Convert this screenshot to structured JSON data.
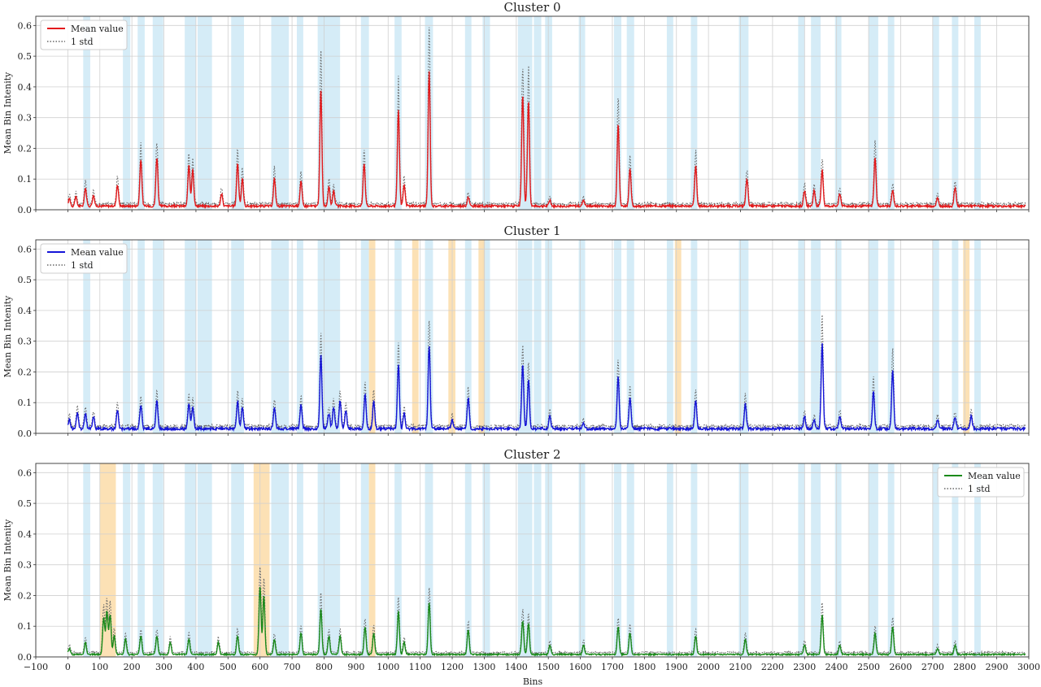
{
  "chart_data": {
    "type": "line",
    "xlabel": "Bins",
    "xlim": [
      -100,
      3000
    ],
    "x_ticks": [
      -100,
      0,
      100,
      200,
      300,
      400,
      500,
      600,
      700,
      800,
      900,
      1000,
      1100,
      1200,
      1300,
      1400,
      1500,
      1600,
      1700,
      1800,
      1900,
      2000,
      2100,
      2200,
      2300,
      2400,
      2500,
      2600,
      2700,
      2800,
      2900,
      3000
    ],
    "ylim": [
      0,
      0.63
    ],
    "y_ticks": [
      0.0,
      0.1,
      0.2,
      0.3,
      0.4,
      0.5,
      0.6
    ],
    "grid": true,
    "shared_blue_bands": [
      [
        48,
        70
      ],
      [
        172,
        195
      ],
      [
        218,
        240
      ],
      [
        265,
        298
      ],
      [
        365,
        400
      ],
      [
        405,
        450
      ],
      [
        510,
        550
      ],
      [
        635,
        690
      ],
      [
        715,
        735
      ],
      [
        780,
        850
      ],
      [
        915,
        940
      ],
      [
        1020,
        1042
      ],
      [
        1115,
        1140
      ],
      [
        1240,
        1260
      ],
      [
        1295,
        1318
      ],
      [
        1405,
        1450
      ],
      [
        1455,
        1478
      ],
      [
        1490,
        1512
      ],
      [
        1595,
        1615
      ],
      [
        1705,
        1728
      ],
      [
        1745,
        1768
      ],
      [
        1870,
        1890
      ],
      [
        1945,
        1965
      ],
      [
        2095,
        2125
      ],
      [
        2280,
        2300
      ],
      [
        2320,
        2350
      ],
      [
        2395,
        2415
      ],
      [
        2500,
        2530
      ],
      [
        2560,
        2580
      ],
      [
        2700,
        2720
      ],
      [
        2760,
        2780
      ],
      [
        2830,
        2850
      ]
    ],
    "panels": [
      {
        "title": "Cluster 0",
        "color": "#e31a1c",
        "legend": {
          "position": "top-left",
          "mean_label": "Mean value",
          "std_label": "1 std"
        },
        "ylabel": "Mean Bin Intenity",
        "orange_bands": [],
        "baseline": 0.012,
        "peaks": [
          [
            5,
            0.025
          ],
          [
            25,
            0.03
          ],
          [
            55,
            0.06
          ],
          [
            80,
            0.035
          ],
          [
            155,
            0.07
          ],
          [
            228,
            0.15
          ],
          [
            278,
            0.16
          ],
          [
            378,
            0.13
          ],
          [
            390,
            0.12
          ],
          [
            480,
            0.04
          ],
          [
            530,
            0.14
          ],
          [
            545,
            0.09
          ],
          [
            645,
            0.09
          ],
          [
            728,
            0.08
          ],
          [
            790,
            0.38
          ],
          [
            815,
            0.06
          ],
          [
            830,
            0.05
          ],
          [
            925,
            0.14
          ],
          [
            1032,
            0.31
          ],
          [
            1050,
            0.07
          ],
          [
            1128,
            0.44
          ],
          [
            1250,
            0.03
          ],
          [
            1420,
            0.36
          ],
          [
            1438,
            0.34
          ],
          [
            1505,
            0.02
          ],
          [
            1610,
            0.02
          ],
          [
            1718,
            0.27
          ],
          [
            1755,
            0.12
          ],
          [
            1960,
            0.13
          ],
          [
            2120,
            0.09
          ],
          [
            2300,
            0.05
          ],
          [
            2330,
            0.05
          ],
          [
            2355,
            0.12
          ],
          [
            2410,
            0.04
          ],
          [
            2520,
            0.16
          ],
          [
            2575,
            0.05
          ],
          [
            2715,
            0.025
          ],
          [
            2770,
            0.06
          ]
        ]
      },
      {
        "title": "Cluster 1",
        "color": "#1414d8",
        "legend": {
          "position": "top-left",
          "mean_label": "Mean value",
          "std_label": "1 std"
        },
        "ylabel": "Mean Bin Intenity",
        "orange_bands": [
          [
            940,
            960
          ],
          [
            1075,
            1095
          ],
          [
            1188,
            1210
          ],
          [
            1282,
            1302
          ],
          [
            1895,
            1915
          ],
          [
            2795,
            2815
          ]
        ],
        "baseline": 0.015,
        "peaks": [
          [
            5,
            0.03
          ],
          [
            30,
            0.05
          ],
          [
            55,
            0.05
          ],
          [
            80,
            0.04
          ],
          [
            155,
            0.06
          ],
          [
            228,
            0.08
          ],
          [
            278,
            0.09
          ],
          [
            378,
            0.08
          ],
          [
            390,
            0.07
          ],
          [
            530,
            0.09
          ],
          [
            545,
            0.07
          ],
          [
            645,
            0.07
          ],
          [
            728,
            0.08
          ],
          [
            790,
            0.24
          ],
          [
            815,
            0.05
          ],
          [
            830,
            0.07
          ],
          [
            850,
            0.09
          ],
          [
            868,
            0.06
          ],
          [
            928,
            0.11
          ],
          [
            955,
            0.09
          ],
          [
            1032,
            0.21
          ],
          [
            1050,
            0.05
          ],
          [
            1128,
            0.27
          ],
          [
            1200,
            0.03
          ],
          [
            1250,
            0.1
          ],
          [
            1420,
            0.21
          ],
          [
            1438,
            0.16
          ],
          [
            1505,
            0.04
          ],
          [
            1610,
            0.02
          ],
          [
            1718,
            0.17
          ],
          [
            1755,
            0.1
          ],
          [
            1960,
            0.09
          ],
          [
            2115,
            0.08
          ],
          [
            2300,
            0.04
          ],
          [
            2330,
            0.03
          ],
          [
            2355,
            0.28
          ],
          [
            2410,
            0.04
          ],
          [
            2515,
            0.12
          ],
          [
            2575,
            0.19
          ],
          [
            2715,
            0.03
          ],
          [
            2770,
            0.04
          ],
          [
            2820,
            0.04
          ]
        ]
      },
      {
        "title": "Cluster 2",
        "color": "#1a8a1a",
        "legend": {
          "position": "top-right",
          "mean_label": "Mean value",
          "std_label": "1 std"
        },
        "ylabel": "Mean Bin Intenity",
        "orange_bands": [
          [
            100,
            150
          ],
          [
            580,
            630
          ],
          [
            940,
            960
          ]
        ],
        "baseline": 0.008,
        "peaks": [
          [
            5,
            0.02
          ],
          [
            55,
            0.04
          ],
          [
            112,
            0.12
          ],
          [
            122,
            0.14
          ],
          [
            132,
            0.13
          ],
          [
            145,
            0.06
          ],
          [
            180,
            0.05
          ],
          [
            228,
            0.06
          ],
          [
            278,
            0.06
          ],
          [
            320,
            0.04
          ],
          [
            378,
            0.05
          ],
          [
            470,
            0.04
          ],
          [
            530,
            0.06
          ],
          [
            600,
            0.22
          ],
          [
            612,
            0.19
          ],
          [
            645,
            0.05
          ],
          [
            728,
            0.07
          ],
          [
            790,
            0.15
          ],
          [
            815,
            0.06
          ],
          [
            850,
            0.06
          ],
          [
            928,
            0.09
          ],
          [
            955,
            0.07
          ],
          [
            1032,
            0.14
          ],
          [
            1050,
            0.04
          ],
          [
            1128,
            0.17
          ],
          [
            1250,
            0.08
          ],
          [
            1420,
            0.11
          ],
          [
            1438,
            0.1
          ],
          [
            1505,
            0.03
          ],
          [
            1610,
            0.03
          ],
          [
            1718,
            0.09
          ],
          [
            1755,
            0.07
          ],
          [
            1960,
            0.06
          ],
          [
            2115,
            0.05
          ],
          [
            2300,
            0.03
          ],
          [
            2355,
            0.13
          ],
          [
            2410,
            0.03
          ],
          [
            2520,
            0.07
          ],
          [
            2575,
            0.09
          ],
          [
            2715,
            0.02
          ],
          [
            2770,
            0.03
          ]
        ]
      }
    ]
  }
}
